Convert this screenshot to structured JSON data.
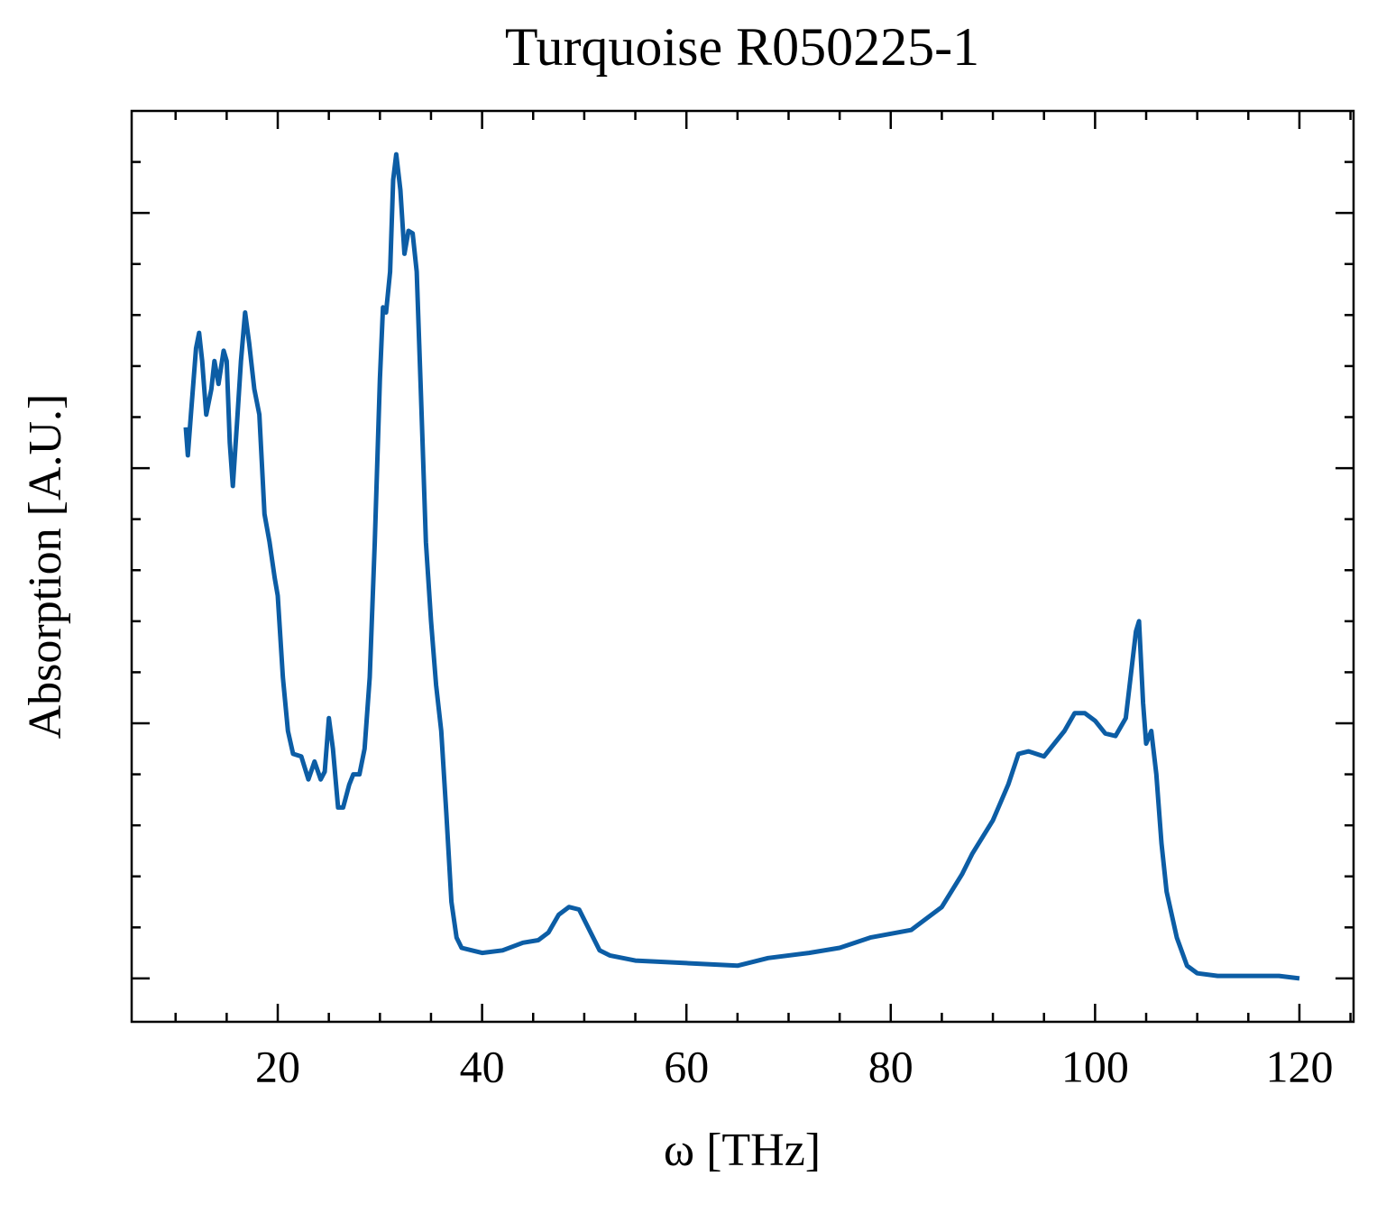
{
  "chart_data": {
    "type": "line",
    "title": "Turquoise R050225-1",
    "x_label": "ω [THz]",
    "y_label": "Absorption [A.U.]",
    "xlim": [
      5.7,
      125.3
    ],
    "xticks": [
      20,
      40,
      60,
      80,
      100,
      120
    ],
    "xminorticks": [
      10,
      15,
      25,
      30,
      35,
      45,
      50,
      55,
      65,
      70,
      75,
      85,
      90,
      95,
      105,
      110,
      115,
      125
    ],
    "ylim": [
      -0.17,
      3.4
    ],
    "yticks": [
      0,
      1,
      2,
      3
    ],
    "yminorticks": [
      0.2,
      0.4,
      0.6,
      0.8,
      1.2,
      1.4,
      1.6,
      1.8,
      2.2,
      2.4,
      2.6,
      2.8,
      3.2
    ],
    "series": [
      {
        "color": "#0c5da5",
        "x": [
          11,
          11.2,
          11.5,
          12,
          12.3,
          12.6,
          13,
          13.5,
          13.8,
          14.2,
          14.7,
          15,
          15.3,
          15.6,
          16,
          16.4,
          16.8,
          17.2,
          17.7,
          18.2,
          18.7,
          19.2,
          19.7,
          20,
          20.5,
          21,
          21.5,
          22.3,
          23,
          23.6,
          24.2,
          24.6,
          25,
          25.4,
          25.9,
          26.4,
          27,
          27.4,
          28,
          28.5,
          29,
          29.5,
          30,
          30.3,
          30.6,
          31,
          31.3,
          31.6,
          32,
          32.4,
          32.8,
          33.2,
          33.6,
          34,
          34.5,
          35,
          35.5,
          36,
          36.5,
          37,
          37.5,
          38,
          39,
          40,
          42,
          44,
          45.5,
          46.5,
          47.5,
          48.5,
          49.5,
          50.5,
          51.5,
          52.5,
          55,
          60,
          65,
          68,
          72,
          75,
          78,
          82,
          85,
          87,
          88,
          90,
          91.5,
          92.5,
          93.5,
          95,
          97,
          98,
          99,
          100,
          101,
          102,
          103,
          104,
          104.3,
          104.7,
          105,
          105.5,
          106,
          106.5,
          107,
          108,
          109,
          110,
          112,
          115,
          118,
          120
        ],
        "values": [
          2.16,
          2.05,
          2.21,
          2.47,
          2.53,
          2.42,
          2.21,
          2.31,
          2.42,
          2.33,
          2.46,
          2.42,
          2.1,
          1.93,
          2.17,
          2.42,
          2.61,
          2.49,
          2.31,
          2.21,
          1.82,
          1.71,
          1.57,
          1.5,
          1.18,
          0.97,
          0.88,
          0.87,
          0.78,
          0.85,
          0.78,
          0.81,
          1.02,
          0.9,
          0.67,
          0.67,
          0.76,
          0.8,
          0.8,
          0.9,
          1.18,
          1.71,
          2.35,
          2.63,
          2.61,
          2.77,
          3.13,
          3.23,
          3.09,
          2.84,
          2.93,
          2.92,
          2.77,
          2.31,
          1.71,
          1.4,
          1.15,
          0.97,
          0.65,
          0.3,
          0.16,
          0.12,
          0.11,
          0.1,
          0.11,
          0.14,
          0.15,
          0.18,
          0.25,
          0.28,
          0.27,
          0.19,
          0.11,
          0.09,
          0.07,
          0.06,
          0.05,
          0.08,
          0.1,
          0.12,
          0.16,
          0.19,
          0.28,
          0.41,
          0.49,
          0.62,
          0.76,
          0.88,
          0.89,
          0.87,
          0.97,
          1.04,
          1.04,
          1.01,
          0.96,
          0.95,
          1.02,
          1.36,
          1.4,
          1.08,
          0.92,
          0.97,
          0.8,
          0.53,
          0.34,
          0.16,
          0.05,
          0.02,
          0.01,
          0.01,
          0.01,
          0
        ]
      }
    ]
  }
}
